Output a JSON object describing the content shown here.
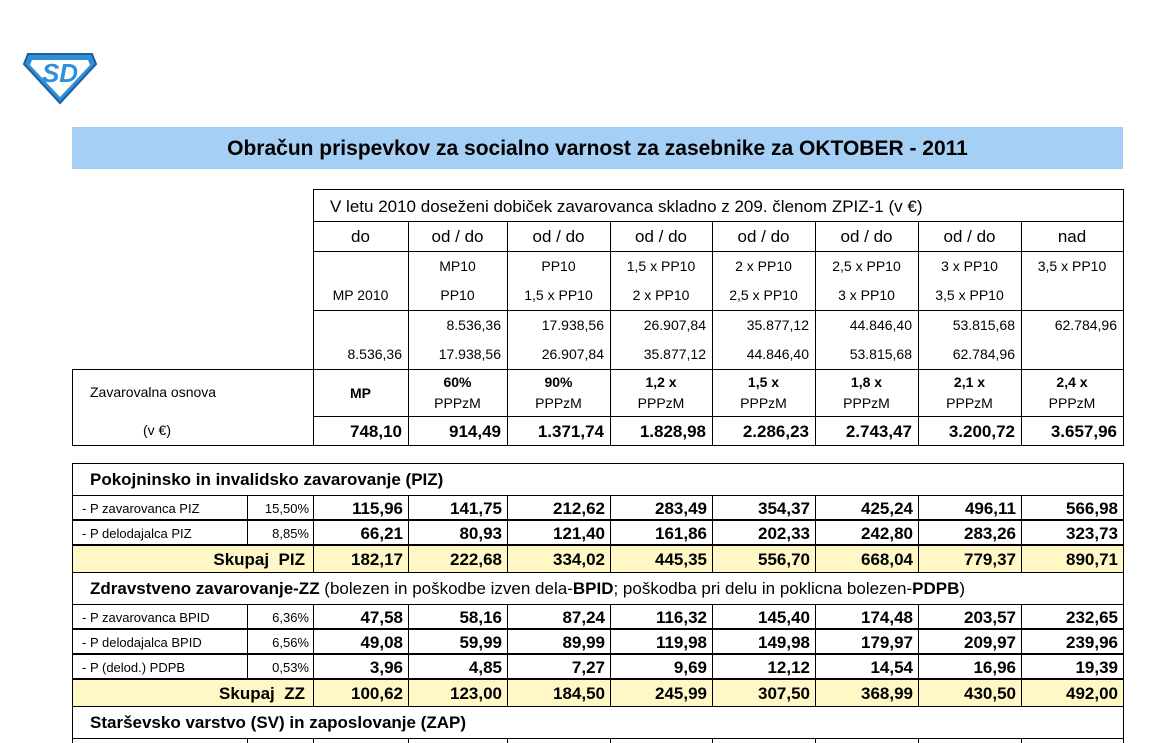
{
  "title": "Obračun prispevkov za socialno varnost za zasebnike za OKTOBER - 2011",
  "income_table": {
    "heading": "V letu 2010 doseženi dobiček zavarovanca skladno z 209. členom ZPIZ-1 (v €)",
    "columns": [
      "do",
      "od / do",
      "od / do",
      "od / do",
      "od / do",
      "od / do",
      "od / do",
      "nad"
    ],
    "from_labels": [
      null,
      "MP10",
      "PP10",
      "1,5 x PP10",
      "2 x PP10",
      "2,5 x PP10",
      "3 x PP10",
      "3,5 x PP10"
    ],
    "to_labels": [
      "MP 2010",
      "PP10",
      "1,5 x PP10",
      "2 x PP10",
      "2,5 x PP10",
      "3 x PP10",
      "3,5 x PP10",
      null
    ],
    "from_amounts": [
      null,
      "8.536,36",
      "17.938,56",
      "26.907,84",
      "35.877,12",
      "44.846,40",
      "53.815,68",
      "62.784,96"
    ],
    "to_amounts": [
      "8.536,36",
      "17.938,56",
      "26.907,84",
      "35.877,12",
      "44.846,40",
      "53.815,68",
      "62.784,96",
      null
    ]
  },
  "base": {
    "label": "Zavarovalna osnova",
    "unit": "(v €)",
    "rates": [
      {
        "top": "MP",
        "bottom": null
      },
      {
        "top": "60%",
        "bottom": "PPPzM"
      },
      {
        "top": "90%",
        "bottom": "PPPzM"
      },
      {
        "top": "1,2 x",
        "bottom": "PPPzM"
      },
      {
        "top": "1,5 x",
        "bottom": "PPPzM"
      },
      {
        "top": "1,8 x",
        "bottom": "PPPzM"
      },
      {
        "top": "2,1 x",
        "bottom": "PPPzM"
      },
      {
        "top": "2,4 x",
        "bottom": "PPPzM"
      }
    ],
    "amounts": [
      "748,10",
      "914,49",
      "1.371,74",
      "1.828,98",
      "2.286,23",
      "2.743,47",
      "3.200,72",
      "3.657,96"
    ]
  },
  "sections": [
    {
      "title_parts": [
        {
          "text": "Pokojninsko in invalidsko zavarovanje (PIZ)",
          "bold": true
        }
      ],
      "rows": [
        {
          "label": "- P zavarovanca PIZ",
          "rate": "15,50%",
          "values": [
            "115,96",
            "141,75",
            "212,62",
            "283,49",
            "354,37",
            "425,24",
            "496,11",
            "566,98"
          ]
        },
        {
          "label": "- P delodajalca PIZ",
          "rate": "8,85%",
          "values": [
            "66,21",
            "80,93",
            "121,40",
            "161,86",
            "202,33",
            "242,80",
            "283,26",
            "323,73"
          ]
        }
      ],
      "total": {
        "label": "Skupaj  PIZ",
        "values": [
          "182,17",
          "222,68",
          "334,02",
          "445,35",
          "556,70",
          "668,04",
          "779,37",
          "890,71"
        ]
      }
    },
    {
      "title_parts": [
        {
          "text": "Zdravstveno zavarovanje-ZZ",
          "bold": true
        },
        {
          "text": " (bolezen in poškodbe izven dela-",
          "bold": false
        },
        {
          "text": "BPID",
          "bold": true
        },
        {
          "text": "; poškodba pri delu in poklicna bolezen-",
          "bold": false
        },
        {
          "text": "PDPB",
          "bold": true
        },
        {
          "text": ")",
          "bold": false
        }
      ],
      "rows": [
        {
          "label": "- P zavarovanca BPID",
          "rate": "6,36%",
          "values": [
            "47,58",
            "58,16",
            "87,24",
            "116,32",
            "145,40",
            "174,48",
            "203,57",
            "232,65"
          ]
        },
        {
          "label": "- P delodajalca BPID",
          "rate": "6,56%",
          "values": [
            "49,08",
            "59,99",
            "89,99",
            "119,98",
            "149,98",
            "179,97",
            "209,97",
            "239,96"
          ]
        },
        {
          "label": "- P (delod.) PDPB",
          "rate": "0,53%",
          "values": [
            "3,96",
            "4,85",
            "7,27",
            "9,69",
            "12,12",
            "14,54",
            "16,96",
            "19,39"
          ]
        }
      ],
      "total": {
        "label": "Skupaj  ZZ",
        "values": [
          "100,62",
          "123,00",
          "184,50",
          "245,99",
          "307,50",
          "368,99",
          "430,50",
          "492,00"
        ]
      }
    },
    {
      "title_parts": [
        {
          "text": "Starševsko varstvo (SV) in zaposlovanje (ZAP)",
          "bold": true
        }
      ],
      "rows": []
    }
  ]
}
